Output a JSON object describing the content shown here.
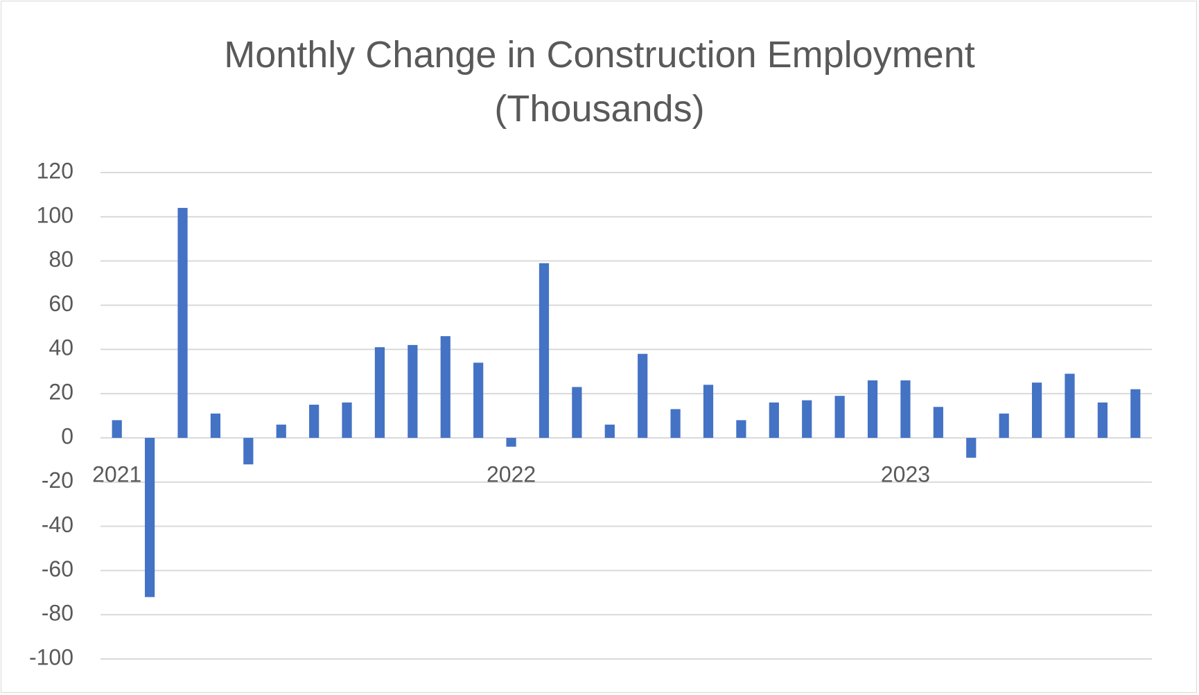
{
  "chart_data": {
    "type": "bar",
    "title": "Monthly Change in Construction Employment (Thousands)",
    "categories": [
      "2021",
      null,
      null,
      null,
      null,
      null,
      null,
      null,
      null,
      null,
      null,
      null,
      "2022",
      null,
      null,
      null,
      null,
      null,
      null,
      null,
      null,
      null,
      null,
      null,
      "2023",
      null,
      null,
      null,
      null,
      null,
      null,
      null
    ],
    "values": [
      8,
      -72,
      104,
      11,
      -12,
      6,
      15,
      16,
      41,
      42,
      46,
      34,
      -4,
      79,
      23,
      6,
      38,
      13,
      24,
      8,
      16,
      17,
      19,
      26,
      26,
      14,
      -9,
      11,
      25,
      29,
      16,
      22
    ],
    "color": "#4472c4",
    "ylim": [
      -100,
      120
    ],
    "yticks": [
      -100,
      -80,
      -60,
      -40,
      -20,
      0,
      20,
      40,
      60,
      80,
      100,
      120
    ],
    "grid": true
  }
}
